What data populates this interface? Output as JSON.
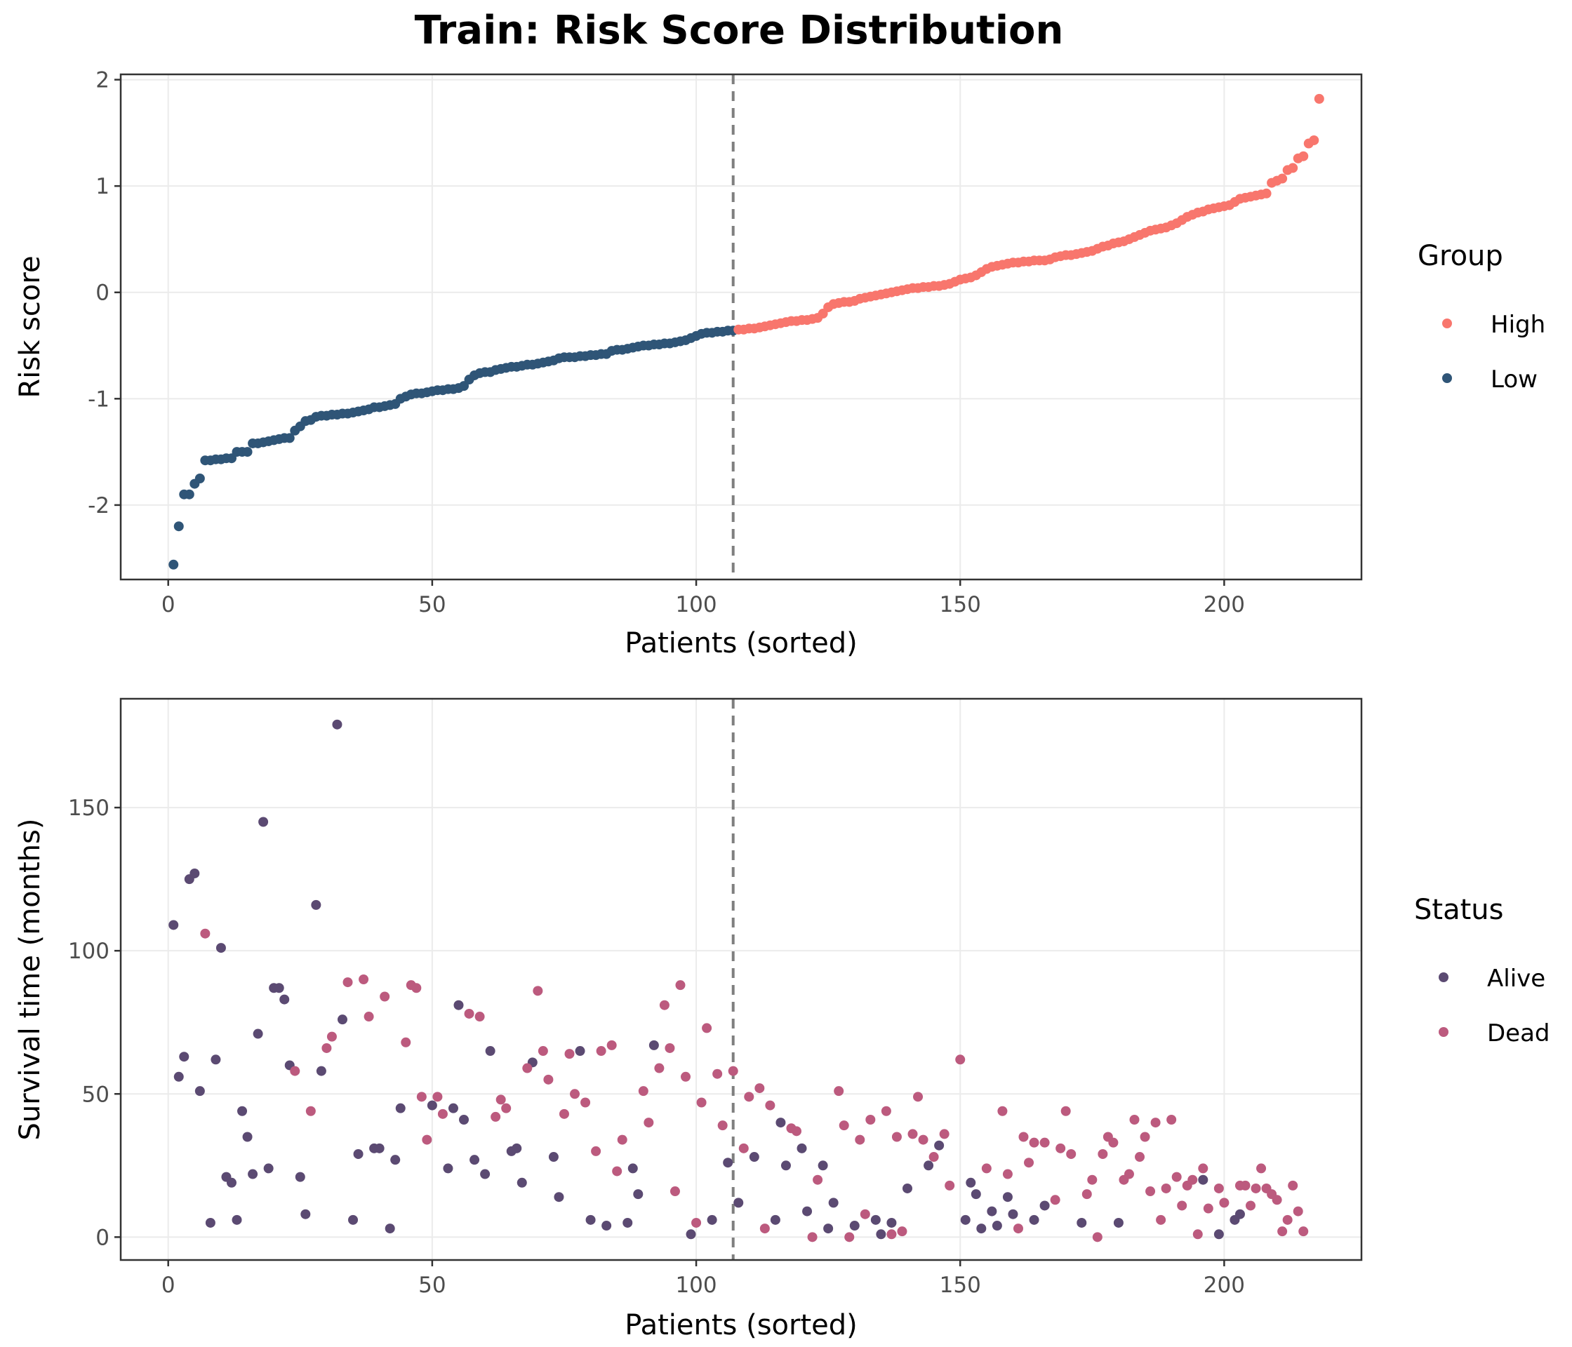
{
  "title": "Train: Risk Score Distribution",
  "colors": {
    "high": "#F8766D",
    "low": "#2F5577",
    "alive": "#5B4A72",
    "dead": "#BC5A7E",
    "cutoff": "#7f7f7f"
  },
  "chart_data": [
    {
      "type": "scatter",
      "panel": "risk",
      "xlabel": "Patients (sorted)",
      "ylabel": "Risk score",
      "xlim": [
        -9,
        226
      ],
      "ylim": [
        -2.7,
        2.05
      ],
      "xticks": [
        0,
        50,
        100,
        150,
        200
      ],
      "yticks": [
        -2,
        -1,
        0,
        1,
        2
      ],
      "cutoff_x": 107,
      "legend": {
        "title": "Group",
        "position": "right",
        "entries": [
          "High",
          "Low"
        ]
      },
      "series": [
        {
          "name": "Low",
          "color": "#2F5577",
          "x_start": 1,
          "values": [
            -2.56,
            -2.2,
            -1.9,
            -1.9,
            -1.8,
            -1.75,
            -1.58,
            -1.58,
            -1.57,
            -1.57,
            -1.56,
            -1.56,
            -1.5,
            -1.5,
            -1.5,
            -1.42,
            -1.42,
            -1.41,
            -1.4,
            -1.39,
            -1.38,
            -1.37,
            -1.37,
            -1.3,
            -1.26,
            -1.21,
            -1.2,
            -1.17,
            -1.16,
            -1.16,
            -1.15,
            -1.15,
            -1.14,
            -1.14,
            -1.13,
            -1.12,
            -1.11,
            -1.1,
            -1.08,
            -1.08,
            -1.07,
            -1.06,
            -1.05,
            -1,
            -0.98,
            -0.96,
            -0.95,
            -0.95,
            -0.94,
            -0.93,
            -0.92,
            -0.92,
            -0.91,
            -0.91,
            -0.9,
            -0.88,
            -0.82,
            -0.78,
            -0.76,
            -0.75,
            -0.75,
            -0.73,
            -0.72,
            -0.71,
            -0.7,
            -0.7,
            -0.69,
            -0.68,
            -0.68,
            -0.67,
            -0.66,
            -0.65,
            -0.64,
            -0.62,
            -0.61,
            -0.61,
            -0.61,
            -0.6,
            -0.6,
            -0.59,
            -0.59,
            -0.58,
            -0.58,
            -0.55,
            -0.54,
            -0.54,
            -0.53,
            -0.52,
            -0.51,
            -0.5,
            -0.5,
            -0.49,
            -0.49,
            -0.48,
            -0.48,
            -0.47,
            -0.46,
            -0.45,
            -0.43,
            -0.41,
            -0.39,
            -0.38,
            -0.38,
            -0.37,
            -0.37,
            -0.36,
            -0.36
          ]
        },
        {
          "name": "High",
          "color": "#F8766D",
          "x_start": 108,
          "values": [
            -0.35,
            -0.35,
            -0.34,
            -0.34,
            -0.33,
            -0.32,
            -0.31,
            -0.3,
            -0.29,
            -0.28,
            -0.27,
            -0.27,
            -0.26,
            -0.26,
            -0.25,
            -0.24,
            -0.2,
            -0.14,
            -0.11,
            -0.1,
            -0.09,
            -0.09,
            -0.08,
            -0.06,
            -0.05,
            -0.04,
            -0.03,
            -0.02,
            -0.01,
            0,
            0.01,
            0.02,
            0.03,
            0.04,
            0.04,
            0.05,
            0.05,
            0.06,
            0.06,
            0.07,
            0.08,
            0.1,
            0.12,
            0.13,
            0.14,
            0.16,
            0.19,
            0.22,
            0.24,
            0.25,
            0.26,
            0.27,
            0.28,
            0.28,
            0.29,
            0.29,
            0.3,
            0.3,
            0.3,
            0.31,
            0.33,
            0.34,
            0.35,
            0.35,
            0.36,
            0.37,
            0.38,
            0.39,
            0.41,
            0.43,
            0.44,
            0.46,
            0.47,
            0.48,
            0.5,
            0.52,
            0.54,
            0.56,
            0.58,
            0.59,
            0.6,
            0.61,
            0.63,
            0.65,
            0.68,
            0.71,
            0.73,
            0.75,
            0.76,
            0.78,
            0.79,
            0.8,
            0.81,
            0.82,
            0.85,
            0.88,
            0.89,
            0.9,
            0.91,
            0.92,
            0.93,
            1.03,
            1.05,
            1.07,
            1.15,
            1.17,
            1.26,
            1.28,
            1.4,
            1.43,
            1.82
          ]
        }
      ]
    },
    {
      "type": "scatter",
      "panel": "survival",
      "xlabel": "Patients (sorted)",
      "ylabel": "Survival time (months)",
      "xlim": [
        -9,
        226
      ],
      "ylim": [
        -8,
        188
      ],
      "xticks": [
        0,
        50,
        100,
        150,
        200
      ],
      "yticks": [
        0,
        50,
        100,
        150
      ],
      "cutoff_x": 107,
      "legend": {
        "title": "Status",
        "position": "right",
        "entries": [
          "Alive",
          "Dead"
        ]
      },
      "series": [
        {
          "name": "Alive",
          "color": "#5B4A72",
          "points": [
            [
              1,
              109
            ],
            [
              2,
              56
            ],
            [
              3,
              63
            ],
            [
              4,
              125
            ],
            [
              5,
              127
            ],
            [
              6,
              51
            ],
            [
              8,
              5
            ],
            [
              9,
              62
            ],
            [
              10,
              101
            ],
            [
              11,
              21
            ],
            [
              12,
              19
            ],
            [
              13,
              6
            ],
            [
              14,
              44
            ],
            [
              15,
              35
            ],
            [
              16,
              22
            ],
            [
              17,
              71
            ],
            [
              18,
              145
            ],
            [
              19,
              24
            ],
            [
              20,
              87
            ],
            [
              21,
              87
            ],
            [
              22,
              83
            ],
            [
              23,
              60
            ],
            [
              25,
              21
            ],
            [
              26,
              8
            ],
            [
              28,
              116
            ],
            [
              29,
              58
            ],
            [
              32,
              179
            ],
            [
              33,
              76
            ],
            [
              35,
              6
            ],
            [
              36,
              29
            ],
            [
              39,
              31
            ],
            [
              40,
              31
            ],
            [
              42,
              3
            ],
            [
              43,
              27
            ],
            [
              44,
              45
            ],
            [
              50,
              46
            ],
            [
              53,
              24
            ],
            [
              54,
              45
            ],
            [
              55,
              81
            ],
            [
              56,
              41
            ],
            [
              58,
              27
            ],
            [
              60,
              22
            ],
            [
              61,
              65
            ],
            [
              65,
              30
            ],
            [
              66,
              31
            ],
            [
              67,
              19
            ],
            [
              69,
              61
            ],
            [
              73,
              28
            ],
            [
              74,
              14
            ],
            [
              78,
              65
            ],
            [
              80,
              6
            ],
            [
              83,
              4
            ],
            [
              87,
              5
            ],
            [
              88,
              24
            ],
            [
              89,
              15
            ],
            [
              92,
              67
            ],
            [
              99,
              1
            ],
            [
              103,
              6
            ],
            [
              106,
              26
            ],
            [
              108,
              12
            ],
            [
              111,
              28
            ],
            [
              115,
              6
            ],
            [
              116,
              40
            ],
            [
              117,
              25
            ],
            [
              120,
              31
            ],
            [
              121,
              9
            ],
            [
              124,
              25
            ],
            [
              125,
              3
            ],
            [
              126,
              12
            ],
            [
              130,
              4
            ],
            [
              134,
              6
            ],
            [
              135,
              1
            ],
            [
              137,
              5
            ],
            [
              140,
              17
            ],
            [
              144,
              25
            ],
            [
              146,
              32
            ],
            [
              151,
              6
            ],
            [
              152,
              19
            ],
            [
              153,
              15
            ],
            [
              154,
              3
            ],
            [
              156,
              9
            ],
            [
              157,
              4
            ],
            [
              159,
              14
            ],
            [
              160,
              8
            ],
            [
              164,
              6
            ],
            [
              166,
              11
            ],
            [
              173,
              5
            ],
            [
              180,
              5
            ],
            [
              196,
              20
            ],
            [
              199,
              1
            ],
            [
              202,
              6
            ],
            [
              203,
              8
            ]
          ]
        },
        {
          "name": "Dead",
          "color": "#BC5A7E",
          "points": [
            [
              7,
              106
            ],
            [
              24,
              58
            ],
            [
              27,
              44
            ],
            [
              30,
              66
            ],
            [
              31,
              70
            ],
            [
              34,
              89
            ],
            [
              37,
              90
            ],
            [
              38,
              77
            ],
            [
              41,
              84
            ],
            [
              45,
              68
            ],
            [
              46,
              88
            ],
            [
              47,
              87
            ],
            [
              48,
              49
            ],
            [
              49,
              34
            ],
            [
              51,
              49
            ],
            [
              52,
              43
            ],
            [
              57,
              78
            ],
            [
              59,
              77
            ],
            [
              62,
              42
            ],
            [
              63,
              48
            ],
            [
              64,
              45
            ],
            [
              68,
              59
            ],
            [
              70,
              86
            ],
            [
              71,
              65
            ],
            [
              72,
              55
            ],
            [
              75,
              43
            ],
            [
              76,
              64
            ],
            [
              77,
              50
            ],
            [
              79,
              47
            ],
            [
              81,
              30
            ],
            [
              82,
              65
            ],
            [
              84,
              67
            ],
            [
              85,
              23
            ],
            [
              86,
              34
            ],
            [
              90,
              51
            ],
            [
              91,
              40
            ],
            [
              93,
              59
            ],
            [
              94,
              81
            ],
            [
              95,
              66
            ],
            [
              96,
              16
            ],
            [
              97,
              88
            ],
            [
              98,
              56
            ],
            [
              100,
              5
            ],
            [
              101,
              47
            ],
            [
              102,
              73
            ],
            [
              104,
              57
            ],
            [
              105,
              39
            ],
            [
              107,
              58
            ],
            [
              109,
              31
            ],
            [
              110,
              49
            ],
            [
              112,
              52
            ],
            [
              113,
              3
            ],
            [
              114,
              46
            ],
            [
              118,
              38
            ],
            [
              119,
              37
            ],
            [
              122,
              0
            ],
            [
              123,
              20
            ],
            [
              127,
              51
            ],
            [
              128,
              39
            ],
            [
              129,
              0
            ],
            [
              131,
              34
            ],
            [
              132,
              8
            ],
            [
              133,
              41
            ],
            [
              136,
              44
            ],
            [
              137,
              1
            ],
            [
              138,
              35
            ],
            [
              139,
              2
            ],
            [
              141,
              36
            ],
            [
              142,
              49
            ],
            [
              143,
              34
            ],
            [
              145,
              28
            ],
            [
              147,
              36
            ],
            [
              148,
              18
            ],
            [
              150,
              62
            ],
            [
              155,
              24
            ],
            [
              158,
              44
            ],
            [
              159,
              22
            ],
            [
              161,
              3
            ],
            [
              162,
              35
            ],
            [
              163,
              26
            ],
            [
              164,
              33
            ],
            [
              166,
              33
            ],
            [
              168,
              13
            ],
            [
              169,
              31
            ],
            [
              170,
              44
            ],
            [
              171,
              29
            ],
            [
              174,
              15
            ],
            [
              175,
              20
            ],
            [
              176,
              0
            ],
            [
              177,
              29
            ],
            [
              178,
              35
            ],
            [
              179,
              33
            ],
            [
              181,
              20
            ],
            [
              182,
              22
            ],
            [
              183,
              41
            ],
            [
              184,
              28
            ],
            [
              185,
              35
            ],
            [
              186,
              16
            ],
            [
              187,
              40
            ],
            [
              188,
              6
            ],
            [
              189,
              17
            ],
            [
              190,
              41
            ],
            [
              191,
              21
            ],
            [
              192,
              11
            ],
            [
              193,
              18
            ],
            [
              194,
              20
            ],
            [
              195,
              1
            ],
            [
              196,
              24
            ],
            [
              197,
              10
            ],
            [
              199,
              17
            ],
            [
              200,
              12
            ],
            [
              203,
              18
            ],
            [
              204,
              18
            ],
            [
              205,
              11
            ],
            [
              206,
              17
            ],
            [
              207,
              24
            ],
            [
              208,
              17
            ],
            [
              209,
              15
            ],
            [
              210,
              13
            ],
            [
              211,
              2
            ],
            [
              212,
              6
            ],
            [
              213,
              18
            ],
            [
              214,
              9
            ],
            [
              215,
              2
            ]
          ]
        }
      ]
    }
  ]
}
